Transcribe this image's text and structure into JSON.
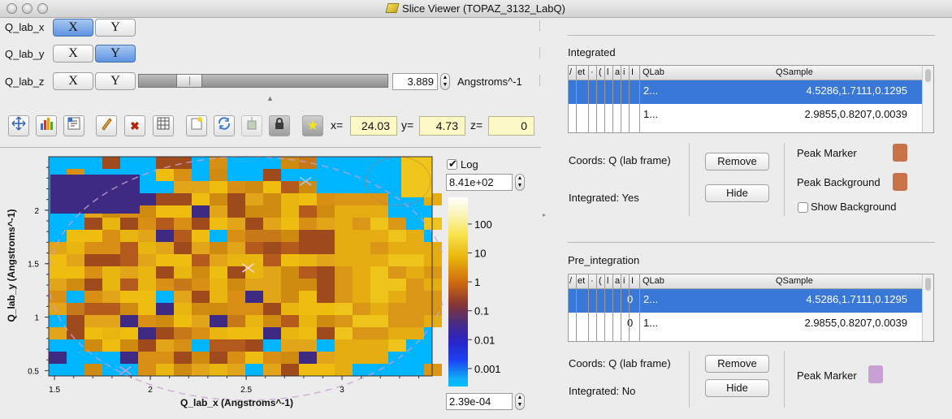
{
  "window": {
    "title": "Slice Viewer (TOPAZ_3132_LabQ)"
  },
  "dimensions": {
    "x_label": "Q_lab_x",
    "y_label": "Q_lab_y",
    "z_label": "Q_lab_z",
    "x_button": "X",
    "y_button": "Y",
    "z_value": "3.889",
    "z_units": "Angstroms^-1",
    "z_slider_position": 0.17
  },
  "coords": {
    "x_label": "x=",
    "x_value": "24.03",
    "y_label": "y=",
    "y_value": "4.73",
    "z_label": "z=",
    "z_value": "0"
  },
  "toolbar_icons": [
    "zoom-fit-icon",
    "histogram-icon",
    "rebin-icon",
    "pencil-icon",
    "delete-icon",
    "grid-icon",
    "new-icon",
    "refresh-icon",
    "overlay-icon",
    "lock-icon",
    "star-icon"
  ],
  "plot": {
    "xlabel": "Q_lab_x (Angstroms^-1)",
    "ylabel": "Q_lab_y (Angstroms^-1)",
    "xticks": [
      "1.5",
      "2",
      "2.5",
      "3"
    ],
    "yticks": [
      "0.5",
      "1",
      "1.5",
      "2"
    ],
    "xlim": [
      1.47,
      3.47
    ],
    "ylim": [
      0.45,
      2.5
    ]
  },
  "colorbar": {
    "log_label": "Log",
    "log_checked": true,
    "max_value": "8.41e+02",
    "min_value": "2.39e-04",
    "ticks": [
      "100",
      "10",
      "1",
      "0.1",
      "0.01",
      "0.001"
    ]
  },
  "integrated": {
    "title": "Integrated",
    "narrow_headers": [
      "/",
      "et",
      "·",
      "(",
      "l",
      "a",
      "i",
      "I"
    ],
    "col_qlab": "QLab",
    "col_qsample": "QSample",
    "rows": [
      {
        "qlab": "2...",
        "qsample": "4.5286,1.7111,0.1295",
        "selected": true
      },
      {
        "qlab": "1...",
        "qsample": "2.9855,0.8207,0.0039",
        "selected": false
      }
    ],
    "coords_text": "Coords: Q (lab frame)",
    "integrated_text": "Integrated: Yes",
    "remove_label": "Remove",
    "hide_label": "Hide",
    "peak_marker_label": "Peak Marker",
    "peak_background_label": "Peak Background",
    "show_background_label": "Show Background",
    "show_background_checked": false,
    "marker_color": "#c8724a",
    "background_color": "#c8724a"
  },
  "pre_integration": {
    "title": "Pre_integration",
    "narrow_headers": [
      "/",
      "et",
      "·",
      "(",
      "l",
      "a",
      "i",
      "I"
    ],
    "narrow_cell_text": "0",
    "col_qlab": "QLab",
    "col_qsample": "QSample",
    "rows": [
      {
        "qlab": "2...",
        "qsample": "4.5286,1.7111,0.1295",
        "selected": true
      },
      {
        "qlab": "1...",
        "qsample": "2.9855,0.8207,0.0039",
        "selected": false
      }
    ],
    "coords_text": "Coords: Q (lab frame)",
    "integrated_text": "Integrated: No",
    "remove_label": "Remove",
    "hide_label": "Hide",
    "peak_marker_label": "Peak Marker",
    "marker_color": "#c9a0d4"
  }
}
